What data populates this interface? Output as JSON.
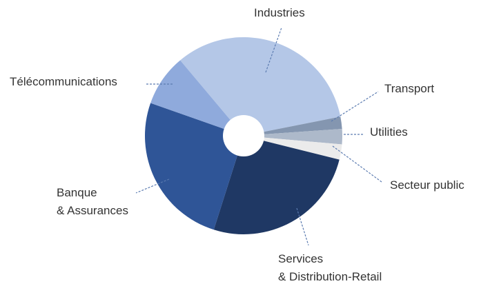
{
  "chart_data": {
    "type": "pie",
    "categories": [
      "Industries",
      "Transport",
      "Utilities",
      "Secteur public",
      "Services\n& Distribution-Retail",
      "Banque\n& Assurances",
      "Télécommunications"
    ],
    "values": [
      33,
      2,
      2.5,
      2.5,
      26,
      25.5,
      8.5
    ],
    "colors": [
      "#b4c7e7",
      "#8496b0",
      "#adb9ca",
      "#ebebeb",
      "#1f3864",
      "#2f5597",
      "#8faadc"
    ]
  }
}
